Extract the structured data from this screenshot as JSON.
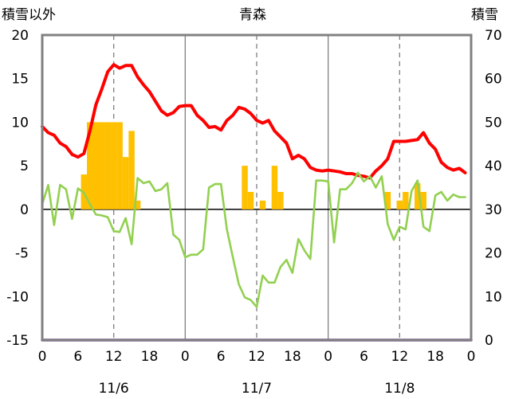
{
  "chart_data": {
    "type": "line",
    "title": "青森",
    "left_axis_label": "積雪以外",
    "right_axis_label": "積雪",
    "left_ylim": [
      -15,
      20
    ],
    "left_yticks": [
      -15,
      -10,
      -5,
      0,
      5,
      10,
      15,
      20
    ],
    "right_ylim": [
      0,
      70
    ],
    "right_yticks": [
      0,
      10,
      20,
      30,
      40,
      50,
      60,
      70
    ],
    "x_range_hours": [
      0,
      72
    ],
    "x_tick_labels": [
      "0",
      "6",
      "12",
      "18",
      "0",
      "6",
      "12",
      "18",
      "0",
      "6",
      "12",
      "18",
      "0"
    ],
    "day_labels": [
      "11/6",
      "11/7",
      "11/8"
    ],
    "grid": "vertical dashed at 12h, solid at day boundaries",
    "colors": {
      "red": "#ff0000",
      "green": "#92d050",
      "bars": "#ffc000",
      "purple": "#7030a0",
      "frame": "#808080"
    },
    "series": [
      {
        "color": "red",
        "axis": "left",
        "x": [
          0,
          1,
          2,
          3,
          4,
          5,
          6,
          7,
          8,
          9,
          10,
          11,
          12,
          13,
          14,
          15,
          16,
          17,
          18,
          19,
          20,
          21,
          22,
          23,
          24,
          25,
          26,
          27,
          28,
          29,
          30,
          31,
          32,
          33,
          34,
          35,
          36,
          37,
          38,
          39,
          40,
          41,
          42,
          43,
          44,
          45,
          46,
          47,
          48,
          49,
          50,
          51,
          52,
          53,
          54,
          55,
          56,
          57,
          58,
          59,
          60,
          61,
          62,
          63,
          64,
          65,
          66,
          67,
          68,
          69,
          70,
          71
        ],
        "values": [
          9.5,
          8.8,
          8.5,
          7.6,
          7.2,
          6.3,
          6.0,
          6.4,
          9.0,
          12.0,
          13.8,
          15.8,
          16.6,
          16.2,
          16.5,
          16.5,
          15.2,
          14.3,
          13.5,
          12.4,
          11.3,
          10.8,
          11.1,
          11.8,
          11.9,
          11.9,
          10.8,
          10.2,
          9.4,
          9.5,
          9.1,
          10.2,
          10.8,
          11.7,
          11.5,
          11.0,
          10.2,
          9.9,
          10.2,
          9.0,
          8.3,
          7.6,
          5.8,
          6.2,
          5.8,
          4.8,
          4.5,
          4.4,
          4.5,
          4.4,
          4.3,
          4.1,
          4.1,
          3.9,
          3.8,
          3.6,
          4.4,
          5.0,
          5.8,
          7.8,
          7.8,
          7.8,
          7.9,
          8.0,
          8.8,
          7.6,
          6.9,
          5.4,
          4.8,
          4.5,
          4.7,
          4.2
        ]
      },
      {
        "color": "green",
        "axis": "left",
        "x": [
          0,
          1,
          2,
          3,
          4,
          5,
          6,
          7,
          8,
          9,
          10,
          11,
          12,
          13,
          14,
          15,
          16,
          17,
          18,
          19,
          20,
          21,
          22,
          23,
          24,
          25,
          26,
          27,
          28,
          29,
          30,
          31,
          32,
          33,
          34,
          35,
          36,
          37,
          38,
          39,
          40,
          41,
          42,
          43,
          44,
          45,
          46,
          47,
          48,
          49,
          50,
          51,
          52,
          53,
          54,
          55,
          56,
          57,
          58,
          59,
          60,
          61,
          62,
          63,
          64,
          65,
          66,
          67,
          68,
          69,
          70,
          71
        ],
        "values": [
          0.6,
          2.8,
          -1.8,
          2.8,
          2.3,
          -1.1,
          2.4,
          1.9,
          0.6,
          -0.6,
          -0.7,
          -0.9,
          -2.5,
          -2.6,
          -1.0,
          -4.0,
          3.6,
          3.0,
          3.2,
          2.1,
          2.3,
          3.0,
          -2.9,
          -3.5,
          -5.5,
          -5.2,
          -5.2,
          -4.6,
          2.5,
          2.9,
          2.9,
          -2.3,
          -5.5,
          -8.6,
          -10.1,
          -10.4,
          -11.2,
          -7.6,
          -8.4,
          -8.4,
          -6.6,
          -5.8,
          -7.3,
          -3.4,
          -4.7,
          -5.7,
          3.3,
          3.3,
          3.2,
          -3.8,
          2.3,
          2.3,
          3.0,
          4.2,
          3.2,
          3.8,
          2.5,
          3.8,
          -1.7,
          -3.5,
          -2.0,
          -2.3,
          2.1,
          3.3,
          -2.0,
          -2.5,
          1.6,
          2.0,
          1.0,
          1.7,
          1.4,
          1.4
        ]
      },
      {
        "color": "purple",
        "axis": "right",
        "x": [
          0,
          72
        ],
        "values": [
          0,
          0
        ]
      },
      {
        "type": "bar",
        "color": "bars",
        "axis": "left",
        "x": [
          7,
          8,
          9,
          10,
          11,
          12,
          13,
          14,
          15,
          16,
          34,
          35,
          36,
          37,
          38,
          39,
          40,
          41,
          58,
          59,
          60,
          61,
          62,
          63,
          64,
          65
        ],
        "values": [
          4,
          10,
          10,
          10,
          10,
          10,
          10,
          6,
          9,
          1,
          5,
          2,
          0,
          1,
          0,
          5,
          2,
          0,
          2,
          0,
          1,
          2,
          0,
          3,
          2,
          0
        ]
      }
    ]
  }
}
